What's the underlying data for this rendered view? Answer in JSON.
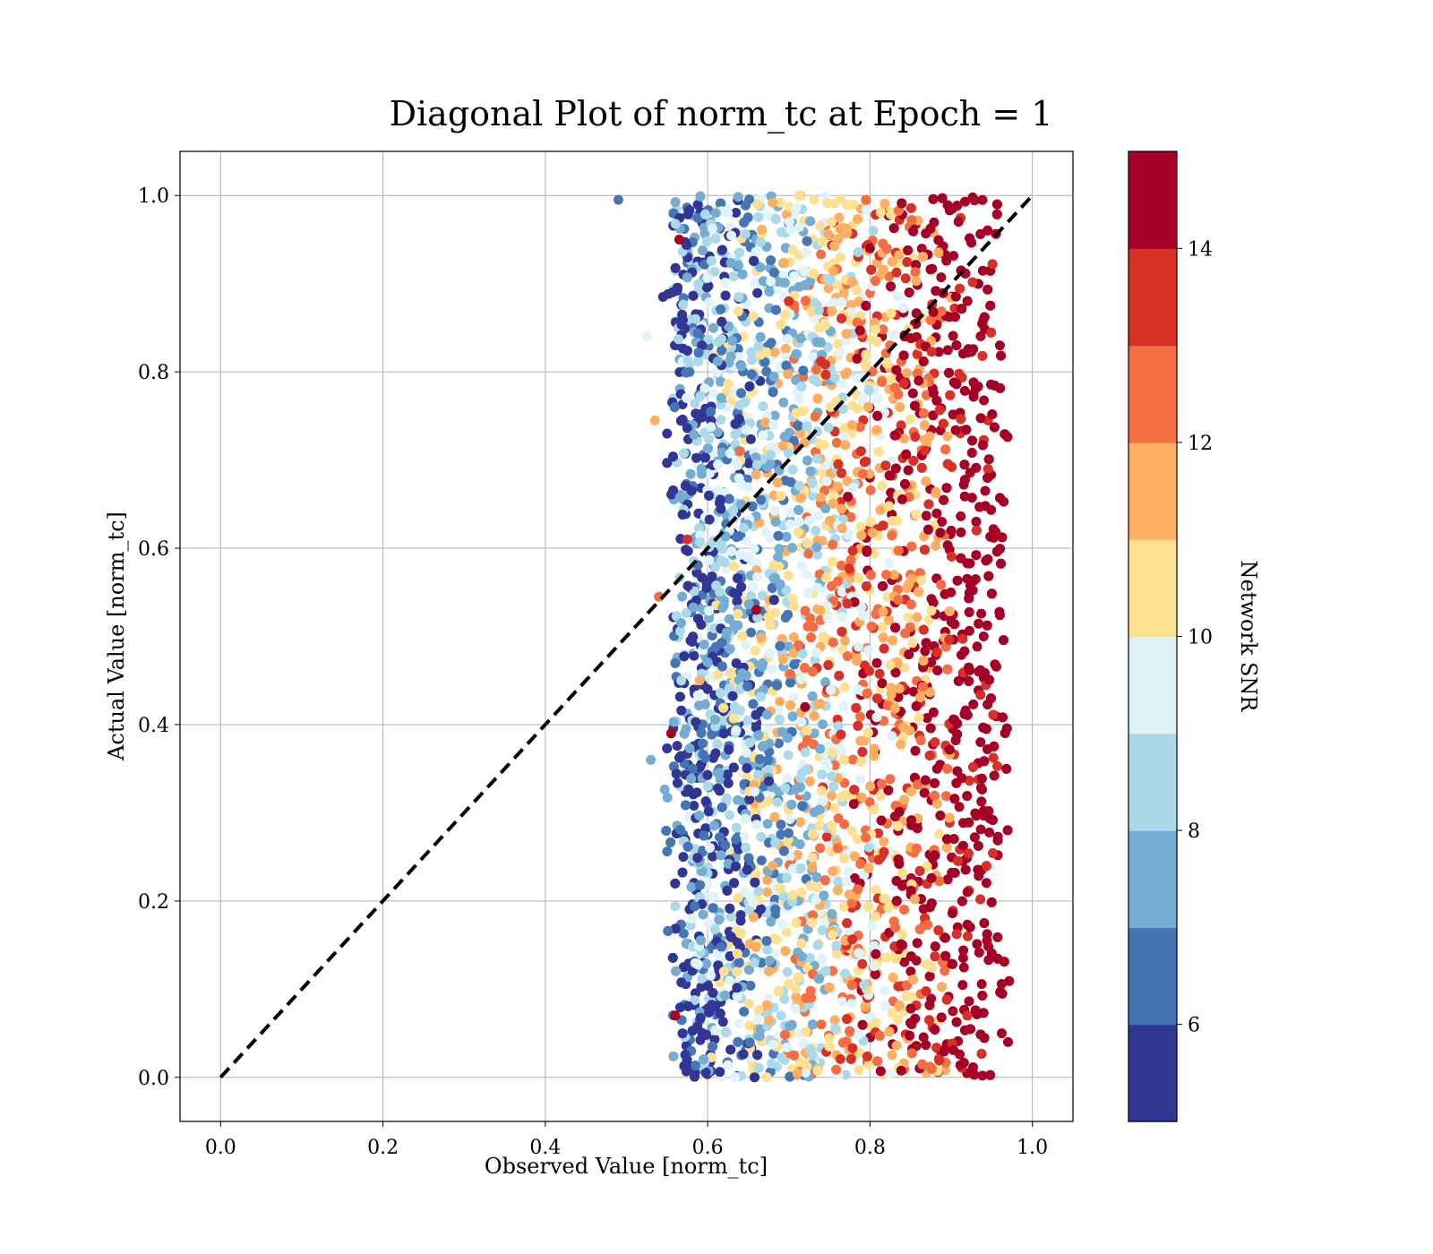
{
  "chart_data": {
    "type": "scatter",
    "title": "Diagonal Plot of norm_tc at Epoch = 1",
    "xlabel": "Observed Value [norm_tc]",
    "ylabel": "Actual Value [norm_tc]",
    "xlim": [
      -0.05,
      1.05
    ],
    "ylim": [
      -0.05,
      1.05
    ],
    "xticks": [
      "0.0",
      "0.2",
      "0.4",
      "0.6",
      "0.8",
      "1.0"
    ],
    "yticks": [
      "0.0",
      "0.2",
      "0.4",
      "0.6",
      "0.8",
      "1.0"
    ],
    "grid": true,
    "reference_line": {
      "style": "dashed",
      "color": "#000000",
      "x": [
        0.0,
        1.0
      ],
      "y": [
        0.0,
        1.0
      ]
    },
    "scatter_extent": {
      "x_min": 0.49,
      "x_max": 0.975,
      "y_min": 0.0,
      "y_max": 1.0
    },
    "color_trend": "SNR increases with observed value; low-SNR blue points near x≈0.55–0.62, high-SNR red points concentrated near x≈0.9–0.97",
    "colorbar": {
      "label": "Network SNR",
      "range": [
        5,
        15
      ],
      "ticks": [
        "6",
        "8",
        "10",
        "12",
        "14"
      ],
      "colors": [
        "#313695",
        "#4575b4",
        "#74add1",
        "#abd9e9",
        "#e0f3f8",
        "#fee090",
        "#fdae61",
        "#f46d43",
        "#d73027",
        "#a50026"
      ]
    },
    "points": [
      {
        "x": 0.49,
        "y": 0.995,
        "snr": 6.0
      },
      {
        "x": 0.525,
        "y": 0.84,
        "snr": 9.5
      },
      {
        "x": 0.53,
        "y": 0.36,
        "snr": 7.0
      },
      {
        "x": 0.535,
        "y": 0.745,
        "snr": 11.5
      },
      {
        "x": 0.54,
        "y": 0.545,
        "snr": 12.5
      },
      {
        "x": 0.545,
        "y": 0.885,
        "snr": 5.5
      },
      {
        "x": 0.55,
        "y": 0.73,
        "snr": 5.2
      },
      {
        "x": 0.555,
        "y": 0.39,
        "snr": 15.0
      },
      {
        "x": 0.56,
        "y": 0.07,
        "snr": 15.0
      },
      {
        "x": 0.565,
        "y": 0.95,
        "snr": 15.0
      },
      {
        "x": 0.57,
        "y": 0.25,
        "snr": 5.5
      },
      {
        "x": 0.575,
        "y": 0.61,
        "snr": 13.0
      },
      {
        "x": 0.58,
        "y": 0.18,
        "snr": 9.5
      },
      {
        "x": 0.585,
        "y": 0.86,
        "snr": 8.0
      },
      {
        "x": 0.59,
        "y": 0.45,
        "snr": 11.0
      },
      {
        "x": 0.6,
        "y": 0.33,
        "snr": 8.0
      },
      {
        "x": 0.61,
        "y": 0.98,
        "snr": 7.0
      },
      {
        "x": 0.62,
        "y": 0.12,
        "snr": 10.0
      },
      {
        "x": 0.64,
        "y": 0.71,
        "snr": 12.0
      },
      {
        "x": 0.66,
        "y": 0.53,
        "snr": 15.0
      },
      {
        "x": 0.68,
        "y": 0.24,
        "snr": 11.5
      },
      {
        "x": 0.7,
        "y": 0.88,
        "snr": 13.0
      },
      {
        "x": 0.72,
        "y": 0.42,
        "snr": 15.0
      },
      {
        "x": 0.74,
        "y": 0.06,
        "snr": 12.5
      },
      {
        "x": 0.76,
        "y": 0.67,
        "snr": 11.0
      },
      {
        "x": 0.78,
        "y": 0.31,
        "snr": 15.0
      },
      {
        "x": 0.8,
        "y": 0.94,
        "snr": 14.0
      },
      {
        "x": 0.82,
        "y": 0.57,
        "snr": 12.5
      },
      {
        "x": 0.84,
        "y": 0.15,
        "snr": 15.0
      },
      {
        "x": 0.86,
        "y": 0.79,
        "snr": 15.0
      },
      {
        "x": 0.88,
        "y": 0.38,
        "snr": 13.5
      },
      {
        "x": 0.9,
        "y": 0.62,
        "snr": 15.0
      },
      {
        "x": 0.92,
        "y": 0.21,
        "snr": 15.0
      },
      {
        "x": 0.94,
        "y": 0.5,
        "snr": 15.0
      },
      {
        "x": 0.96,
        "y": 0.83,
        "snr": 15.0
      },
      {
        "x": 0.97,
        "y": 0.04,
        "snr": 15.0
      }
    ]
  }
}
